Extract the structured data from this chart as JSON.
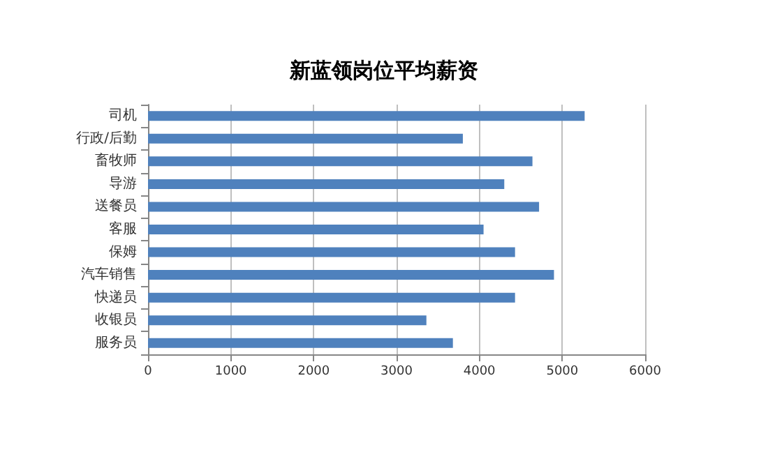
{
  "chart_data": {
    "type": "bar",
    "orientation": "horizontal",
    "title": "新蓝领岗位平均薪资",
    "categories": [
      "司机",
      "行政/后勤",
      "畜牧师",
      "导游",
      "送餐员",
      "客服",
      "保姆",
      "汽车销售",
      "快递员",
      "收银员",
      "服务员"
    ],
    "values": [
      5270,
      3800,
      4640,
      4300,
      4720,
      4050,
      4430,
      4900,
      4430,
      3360,
      3680
    ],
    "color": "#4f81bd",
    "xlim": [
      0,
      6000
    ],
    "xticks": [
      0,
      1000,
      2000,
      3000,
      4000,
      5000,
      6000
    ],
    "grid": "x"
  }
}
